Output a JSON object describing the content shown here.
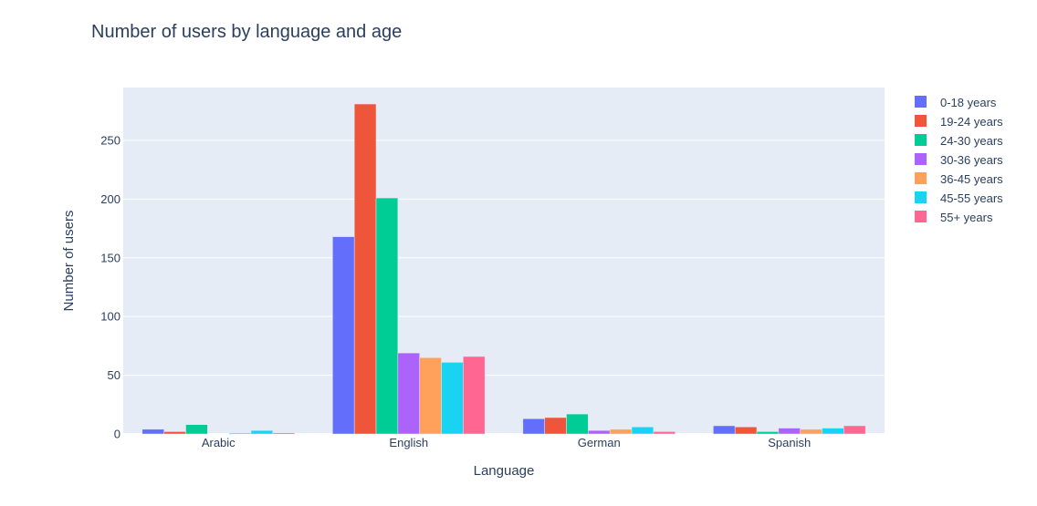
{
  "chart_data": {
    "type": "bar",
    "title": "Number of users by language and age",
    "xlabel": "Language",
    "ylabel": "Number of users",
    "categories": [
      "Arabic",
      "English",
      "German",
      "Spanish"
    ],
    "ylim": [
      0,
      295
    ],
    "yticks": [
      0,
      50,
      100,
      150,
      200,
      250
    ],
    "grid": true,
    "legend_position": "top-right",
    "plot_bgcolor": "#e5ecf6",
    "series": [
      {
        "name": "0-18 years",
        "color": "#636efa",
        "values": [
          4,
          168,
          13,
          7
        ]
      },
      {
        "name": "19-24 years",
        "color": "#ef553b",
        "values": [
          2,
          281,
          14,
          6
        ]
      },
      {
        "name": "24-30 years",
        "color": "#00cc96",
        "values": [
          8,
          201,
          17,
          2
        ]
      },
      {
        "name": "30-36 years",
        "color": "#ab63fa",
        "values": [
          0,
          69,
          3,
          5
        ]
      },
      {
        "name": "36-45 years",
        "color": "#ffa15a",
        "values": [
          1,
          65,
          4,
          4
        ]
      },
      {
        "name": "45-55 years",
        "color": "#19d3f3",
        "values": [
          3,
          61,
          6,
          5
        ]
      },
      {
        "name": "55+ years",
        "color": "#ff6692",
        "values": [
          1,
          66,
          2,
          7
        ]
      }
    ]
  }
}
